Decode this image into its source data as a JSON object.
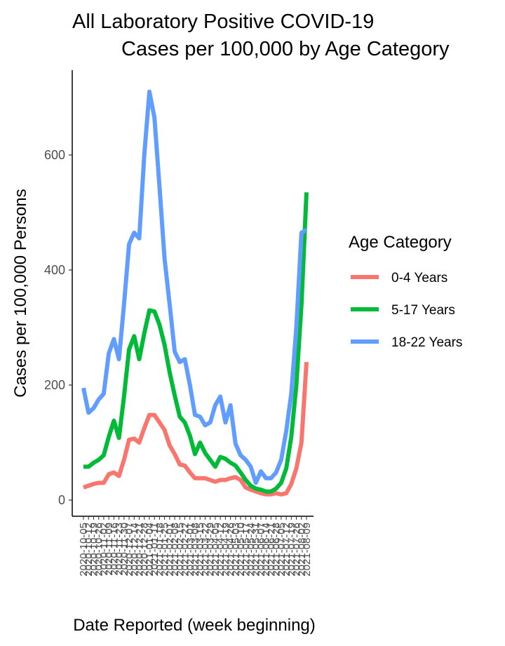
{
  "chart_data": {
    "type": "line",
    "title": "All Laboratory Positive COVID-19\n        Cases per 100,000 by Age Category",
    "xlabel": "Date Reported (week beginning)",
    "ylabel": "Cases per 100,000 Persons",
    "ylim": [
      0,
      730
    ],
    "yticks": [
      0,
      200,
      400,
      600
    ],
    "grid": false,
    "legend": {
      "title": "Age Category",
      "placement": "right"
    },
    "x": [
      "2020-10-05",
      "2020-10-12",
      "2020-10-19",
      "2020-10-26",
      "2020-11-02",
      "2020-11-09",
      "2020-11-16",
      "2020-11-23",
      "2020-11-30",
      "2020-12-07",
      "2020-12-14",
      "2020-12-21",
      "2020-12-28",
      "2021-01-04",
      "2021-01-11",
      "2021-01-18",
      "2021-01-25",
      "2021-02-01",
      "2021-02-08",
      "2021-02-15",
      "2021-02-22",
      "2021-03-01",
      "2021-03-08",
      "2021-03-15",
      "2021-03-22",
      "2021-03-29",
      "2021-04-05",
      "2021-04-12",
      "2021-04-19",
      "2021-04-26",
      "2021-05-03",
      "2021-05-10",
      "2021-05-17",
      "2021-05-24",
      "2021-05-31",
      "2021-06-07",
      "2021-06-14",
      "2021-06-21",
      "2021-06-28",
      "2021-07-05",
      "2021-07-12",
      "2021-07-19",
      "2021-07-26",
      "2021-08-02",
      "2021-08-09"
    ],
    "series": [
      {
        "name": "0-4 Years",
        "color": "#F8766D",
        "values": [
          22,
          25,
          28,
          30,
          30,
          45,
          48,
          42,
          70,
          105,
          107,
          100,
          125,
          148,
          148,
          135,
          122,
          95,
          80,
          62,
          60,
          48,
          38,
          38,
          38,
          35,
          32,
          35,
          35,
          38,
          40,
          35,
          22,
          18,
          15,
          12,
          10,
          10,
          12,
          10,
          12,
          28,
          55,
          100,
          240
        ]
      },
      {
        "name": "5-17 Years",
        "color": "#00BA38",
        "values": [
          58,
          58,
          65,
          70,
          78,
          110,
          138,
          108,
          180,
          262,
          285,
          245,
          290,
          330,
          328,
          305,
          270,
          222,
          182,
          145,
          135,
          112,
          80,
          100,
          82,
          70,
          58,
          75,
          72,
          65,
          60,
          48,
          35,
          25,
          20,
          18,
          15,
          15,
          20,
          30,
          55,
          110,
          200,
          340,
          535
        ]
      },
      {
        "name": "18-22 Years",
        "color": "#619CFF",
        "values": [
          195,
          152,
          160,
          175,
          185,
          255,
          280,
          245,
          340,
          445,
          465,
          455,
          600,
          710,
          665,
          545,
          420,
          340,
          258,
          240,
          245,
          200,
          148,
          145,
          130,
          135,
          165,
          180,
          135,
          165,
          98,
          78,
          70,
          58,
          30,
          50,
          38,
          38,
          48,
          70,
          120,
          185,
          300,
          465,
          470
        ]
      }
    ]
  }
}
